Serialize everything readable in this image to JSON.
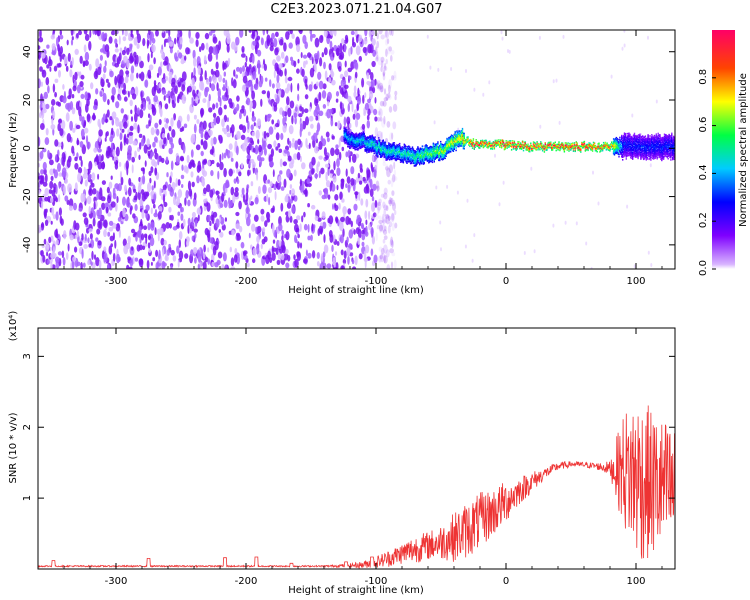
{
  "figure": {
    "title": "C2E3.2023.071.21.04.G07"
  },
  "chart_data": [
    {
      "type": "heatmap",
      "xlabel": "Height of straight line (km)",
      "ylabel": "Frequency (Hz)",
      "xlim": [
        -360,
        130
      ],
      "ylim": [
        -50,
        49
      ],
      "xticks": [
        -300,
        -200,
        -100,
        0,
        100
      ],
      "xtick_labels": [
        "-300",
        "-200",
        "-100",
        "0",
        "100"
      ],
      "yticks": [
        -40,
        -20,
        0,
        20,
        40
      ],
      "ytick_labels": [
        "-40",
        "-20",
        "0",
        "20",
        "40"
      ],
      "colorbar": {
        "label": "Normalized spectral amplitude",
        "range": [
          0,
          1
        ],
        "ticks": [
          0.0,
          0.2,
          0.4,
          0.6,
          0.8
        ],
        "tick_labels": [
          "0.0",
          "0.2",
          "0.4",
          "0.6",
          "0.8"
        ]
      },
      "noise_region": {
        "x": [
          -360,
          -100
        ],
        "amplitude": 0.1
      },
      "signal_ridge": {
        "x": [
          -125,
          -110,
          -100,
          -90,
          -80,
          -70,
          -60,
          -50,
          -40,
          -35,
          -30,
          -25,
          -20,
          -10,
          0,
          20,
          40,
          60,
          80,
          90,
          100,
          110,
          120,
          130
        ],
        "frequency": [
          5,
          3,
          1,
          -1,
          -2,
          -3,
          -2,
          -1,
          3,
          5,
          3,
          2,
          2,
          2,
          2,
          1,
          1,
          1,
          1,
          1,
          1,
          1,
          1,
          1
        ],
        "amplitude": [
          0.4,
          0.45,
          0.5,
          0.5,
          0.5,
          0.55,
          0.6,
          0.65,
          0.7,
          0.75,
          0.85,
          0.95,
          0.95,
          0.95,
          0.95,
          0.95,
          0.95,
          0.95,
          0.9,
          0.3,
          0.3,
          0.3,
          0.3,
          0.3
        ]
      }
    },
    {
      "type": "line",
      "xlabel": "Height of straight line (km)",
      "ylabel": "SNR (10 * v/v)",
      "yscale_label": "(x10⁴)",
      "xlim": [
        -360,
        130
      ],
      "ylim": [
        0,
        3.4
      ],
      "xticks": [
        -300,
        -200,
        -100,
        0,
        100
      ],
      "xtick_labels": [
        "-300",
        "-200",
        "-100",
        "0",
        "100"
      ],
      "yticks": [
        1,
        2,
        3
      ],
      "ytick_labels": [
        "1",
        "2",
        "3"
      ],
      "series": [
        {
          "color": "#ee3333",
          "x": [
            -360,
            -340,
            -320,
            -300,
            -280,
            -260,
            -240,
            -220,
            -200,
            -180,
            -160,
            -140,
            -120,
            -110,
            -100,
            -90,
            -80,
            -70,
            -60,
            -50,
            -40,
            -30,
            -20,
            -10,
            0,
            10,
            20,
            30,
            40,
            50,
            60,
            70,
            80,
            90,
            100,
            110,
            120,
            130
          ],
          "y": [
            0.04,
            0.04,
            0.04,
            0.04,
            0.04,
            0.04,
            0.04,
            0.04,
            0.04,
            0.04,
            0.04,
            0.04,
            0.05,
            0.06,
            0.1,
            0.15,
            0.22,
            0.28,
            0.33,
            0.38,
            0.45,
            0.55,
            0.68,
            0.8,
            0.95,
            1.1,
            1.23,
            1.35,
            1.45,
            1.48,
            1.47,
            1.45,
            1.42,
            1.4,
            1.3,
            1.2,
            1.15,
            1.1
          ],
          "spread": [
            0.01,
            0.01,
            0.01,
            0.01,
            0.01,
            0.01,
            0.01,
            0.01,
            0.01,
            0.01,
            0.01,
            0.01,
            0.03,
            0.05,
            0.08,
            0.12,
            0.15,
            0.2,
            0.2,
            0.25,
            0.35,
            0.4,
            0.4,
            0.35,
            0.3,
            0.2,
            0.15,
            0.08,
            0.06,
            0.04,
            0.04,
            0.05,
            0.1,
            0.8,
            1.2,
            1.1,
            1.0,
            0.9
          ]
        }
      ],
      "spikes": [
        {
          "x": -348,
          "y": 0.12
        },
        {
          "x": -275,
          "y": 0.15
        },
        {
          "x": -216,
          "y": 0.16
        },
        {
          "x": -192,
          "y": 0.17
        },
        {
          "x": -165,
          "y": 0.08
        },
        {
          "x": -123,
          "y": 0.1
        },
        {
          "x": -103,
          "y": 0.17
        }
      ]
    }
  ]
}
